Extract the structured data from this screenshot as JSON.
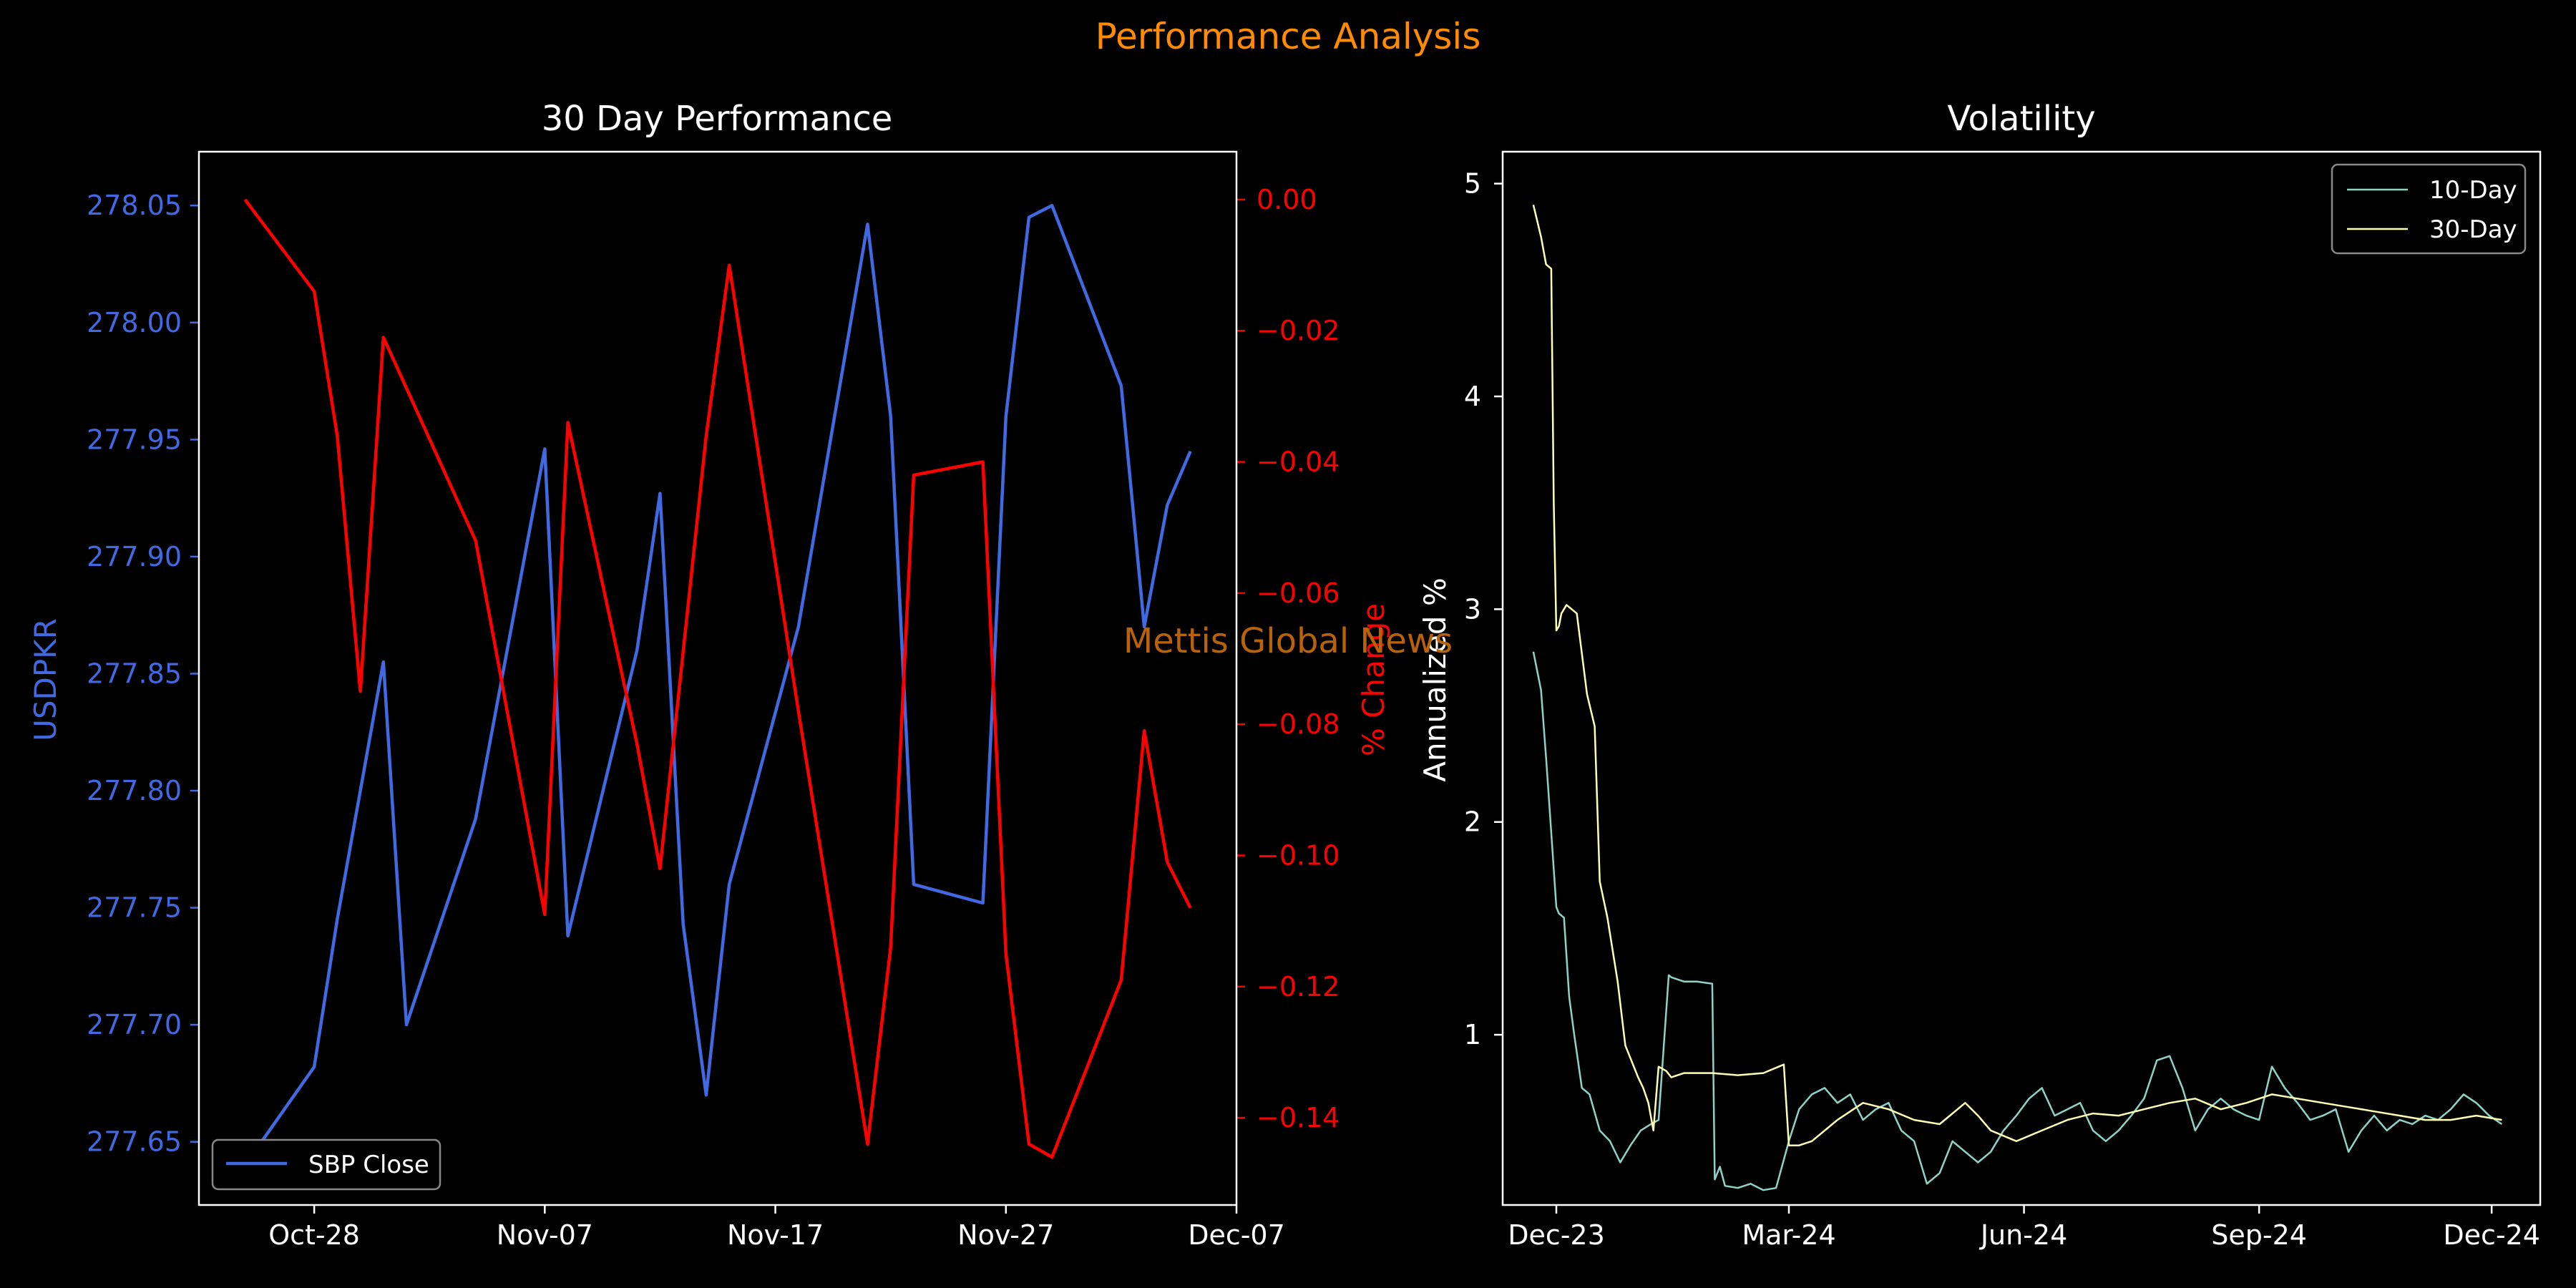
{
  "figure": {
    "title": "Performance Analysis",
    "watermark": "Mettis Global News",
    "title_color": "#ff8c00",
    "watermark_color": "#b8620a",
    "background": "#000000",
    "foreground": "#ffffff"
  },
  "chart_data": [
    {
      "type": "line",
      "title": "30 Day Performance",
      "xlabel": "",
      "x_ticks": [
        "Oct-28",
        "Nov-07",
        "Nov-17",
        "Nov-27",
        "Dec-07"
      ],
      "legend": {
        "placement": "lower-left",
        "entries": [
          "SBP Close"
        ]
      },
      "grid": false,
      "left_axis": {
        "label": "USDPKR",
        "color": "#4169e1",
        "ylim": [
          277.623,
          278.073
        ],
        "ticks": [
          "277.65",
          "277.70",
          "277.75",
          "277.80",
          "277.85",
          "277.90",
          "277.95",
          "278.00",
          "278.05"
        ]
      },
      "right_axis": {
        "label": "% Change",
        "color": "#ff0000",
        "ylim": [
          -0.1533,
          0.0073
        ],
        "ticks": [
          "0.00",
          "−0.02",
          "−0.04",
          "−0.06",
          "−0.08",
          "−0.10",
          "−0.12",
          "−0.14"
        ]
      },
      "series": [
        {
          "name": "SBP Close",
          "axis": "left",
          "color": "#4169e1",
          "x": [
            "2024-10-25",
            "2024-10-28",
            "2024-10-29",
            "2024-10-30",
            "2024-10-31",
            "2024-11-01",
            "2024-11-04",
            "2024-11-07",
            "2024-11-08",
            "2024-11-11",
            "2024-11-12",
            "2024-11-13",
            "2024-11-14",
            "2024-11-15",
            "2024-11-18",
            "2024-11-21",
            "2024-11-22",
            "2024-11-23",
            "2024-11-26",
            "2024-11-27",
            "2024-11-28",
            "2024-11-29",
            "2024-12-02",
            "2024-12-03",
            "2024-12-04",
            "2024-12-05"
          ],
          "values": [
            277.64,
            277.682,
            277.745,
            277.8,
            277.855,
            277.7,
            277.788,
            277.946,
            277.738,
            277.86,
            277.927,
            277.743,
            277.67,
            277.76,
            277.87,
            278.042,
            277.96,
            277.76,
            277.752,
            277.96,
            278.045,
            278.05,
            277.973,
            277.87,
            277.922,
            277.945
          ]
        },
        {
          "name": "% Change",
          "axis": "right",
          "color": "#ff0000",
          "x": [
            "2024-10-25",
            "2024-10-28",
            "2024-10-29",
            "2024-10-30",
            "2024-10-31",
            "2024-11-04",
            "2024-11-07",
            "2024-11-08",
            "2024-11-11",
            "2024-11-12",
            "2024-11-14",
            "2024-11-15",
            "2024-11-18",
            "2024-11-21",
            "2024-11-22",
            "2024-11-23",
            "2024-11-26",
            "2024-11-27",
            "2024-11-28",
            "2024-11-29",
            "2024-12-02",
            "2024-12-03",
            "2024-12-04",
            "2024-12-05"
          ],
          "values": [
            0.0,
            -0.014,
            -0.036,
            -0.075,
            -0.021,
            -0.052,
            -0.109,
            -0.034,
            -0.083,
            -0.102,
            -0.036,
            -0.01,
            -0.078,
            -0.144,
            -0.114,
            -0.042,
            -0.04,
            -0.115,
            -0.144,
            -0.146,
            -0.119,
            -0.081,
            -0.101,
            -0.108
          ]
        }
      ]
    },
    {
      "type": "line",
      "title": "Volatility",
      "xlabel": "",
      "ylabel": "Annualized %",
      "x_ticks": [
        "Dec-23",
        "Mar-24",
        "Jun-24",
        "Sep-24",
        "Dec-24"
      ],
      "y_ticks": [
        "1",
        "2",
        "3",
        "4",
        "5"
      ],
      "xlim": [
        "2023-11-10",
        "2024-12-20"
      ],
      "ylim": [
        0.2,
        5.15
      ],
      "grid": false,
      "legend": {
        "placement": "top-right",
        "entries": [
          "10-Day",
          "30-Day"
        ]
      },
      "series": [
        {
          "name": "10-Day",
          "color": "#8dd3c7",
          "x": [
            "2023-11-22",
            "2023-11-25",
            "2023-11-27",
            "2023-11-29",
            "2023-12-01",
            "2023-12-02",
            "2023-12-04",
            "2023-12-06",
            "2023-12-08",
            "2023-12-11",
            "2023-12-14",
            "2023-12-18",
            "2023-12-22",
            "2023-12-26",
            "2023-12-30",
            "2024-01-03",
            "2024-01-07",
            "2024-01-10",
            "2024-01-14",
            "2024-01-15",
            "2024-01-20",
            "2024-01-25",
            "2024-01-31",
            "2024-02-01",
            "2024-02-03",
            "2024-02-05",
            "2024-02-10",
            "2024-02-15",
            "2024-02-20",
            "2024-02-25",
            "2024-03-01",
            "2024-03-05",
            "2024-03-10",
            "2024-03-15",
            "2024-03-20",
            "2024-03-25",
            "2024-03-30",
            "2024-04-04",
            "2024-04-09",
            "2024-04-14",
            "2024-04-19",
            "2024-04-24",
            "2024-04-29",
            "2024-05-04",
            "2024-05-09",
            "2024-05-14",
            "2024-05-19",
            "2024-05-24",
            "2024-05-29",
            "2024-06-03",
            "2024-06-08",
            "2024-06-13",
            "2024-06-18",
            "2024-06-23",
            "2024-06-28",
            "2024-07-03",
            "2024-07-08",
            "2024-07-13",
            "2024-07-18",
            "2024-07-23",
            "2024-07-28",
            "2024-08-02",
            "2024-08-07",
            "2024-08-12",
            "2024-08-17",
            "2024-08-22",
            "2024-08-27",
            "2024-09-01",
            "2024-09-06",
            "2024-09-11",
            "2024-09-16",
            "2024-09-21",
            "2024-09-26",
            "2024-10-01",
            "2024-10-06",
            "2024-10-11",
            "2024-10-16",
            "2024-10-21",
            "2024-10-26",
            "2024-10-31",
            "2024-11-05",
            "2024-11-10",
            "2024-11-15",
            "2024-11-20",
            "2024-11-25",
            "2024-11-30",
            "2024-12-05"
          ],
          "values": [
            2.8,
            2.62,
            2.3,
            1.95,
            1.6,
            1.57,
            1.55,
            1.18,
            1.0,
            0.75,
            0.72,
            0.55,
            0.5,
            0.4,
            0.48,
            0.55,
            0.58,
            0.6,
            1.28,
            1.27,
            1.25,
            1.25,
            1.24,
            0.32,
            0.38,
            0.29,
            0.28,
            0.3,
            0.27,
            0.28,
            0.5,
            0.65,
            0.72,
            0.75,
            0.68,
            0.72,
            0.6,
            0.65,
            0.68,
            0.55,
            0.5,
            0.3,
            0.35,
            0.5,
            0.45,
            0.4,
            0.45,
            0.55,
            0.62,
            0.7,
            0.75,
            0.62,
            0.65,
            0.68,
            0.55,
            0.5,
            0.55,
            0.62,
            0.7,
            0.88,
            0.9,
            0.75,
            0.55,
            0.65,
            0.7,
            0.65,
            0.62,
            0.6,
            0.85,
            0.75,
            0.68,
            0.6,
            0.62,
            0.65,
            0.45,
            0.55,
            0.62,
            0.55,
            0.6,
            0.58,
            0.62,
            0.6,
            0.65,
            0.72,
            0.68,
            0.62,
            0.58
          ]
        },
        {
          "name": "30-Day",
          "color": "#ffffb3",
          "x": [
            "2023-11-22",
            "2023-11-25",
            "2023-11-27",
            "2023-11-29",
            "2023-11-30",
            "2023-12-01",
            "2023-12-02",
            "2023-12-03",
            "2023-12-05",
            "2023-12-09",
            "2023-12-13",
            "2023-12-16",
            "2023-12-18",
            "2023-12-21",
            "2023-12-25",
            "2023-12-28",
            "2024-01-02",
            "2024-01-04",
            "2024-01-06",
            "2024-01-08",
            "2024-01-10",
            "2024-01-13",
            "2024-01-15",
            "2024-01-20",
            "2024-01-31",
            "2024-02-10",
            "2024-02-20",
            "2024-02-28",
            "2024-03-01",
            "2024-03-05",
            "2024-03-10",
            "2024-03-20",
            "2024-03-30",
            "2024-04-09",
            "2024-04-19",
            "2024-04-29",
            "2024-05-09",
            "2024-05-14",
            "2024-05-19",
            "2024-05-29",
            "2024-06-08",
            "2024-06-18",
            "2024-06-28",
            "2024-07-08",
            "2024-07-18",
            "2024-07-28",
            "2024-08-07",
            "2024-08-17",
            "2024-08-27",
            "2024-09-06",
            "2024-09-16",
            "2024-09-26",
            "2024-10-06",
            "2024-10-16",
            "2024-10-26",
            "2024-11-05",
            "2024-11-15",
            "2024-11-25",
            "2024-12-05"
          ],
          "values": [
            4.9,
            4.75,
            4.62,
            4.6,
            3.5,
            2.9,
            2.92,
            2.98,
            3.02,
            2.98,
            2.6,
            2.45,
            1.72,
            1.55,
            1.25,
            0.95,
            0.8,
            0.75,
            0.68,
            0.55,
            0.85,
            0.83,
            0.8,
            0.82,
            0.82,
            0.81,
            0.82,
            0.86,
            0.48,
            0.48,
            0.5,
            0.6,
            0.68,
            0.65,
            0.6,
            0.58,
            0.68,
            0.62,
            0.55,
            0.5,
            0.55,
            0.6,
            0.63,
            0.62,
            0.65,
            0.68,
            0.7,
            0.65,
            0.68,
            0.72,
            0.7,
            0.68,
            0.66,
            0.64,
            0.62,
            0.6,
            0.6,
            0.62,
            0.6
          ]
        }
      ]
    }
  ]
}
